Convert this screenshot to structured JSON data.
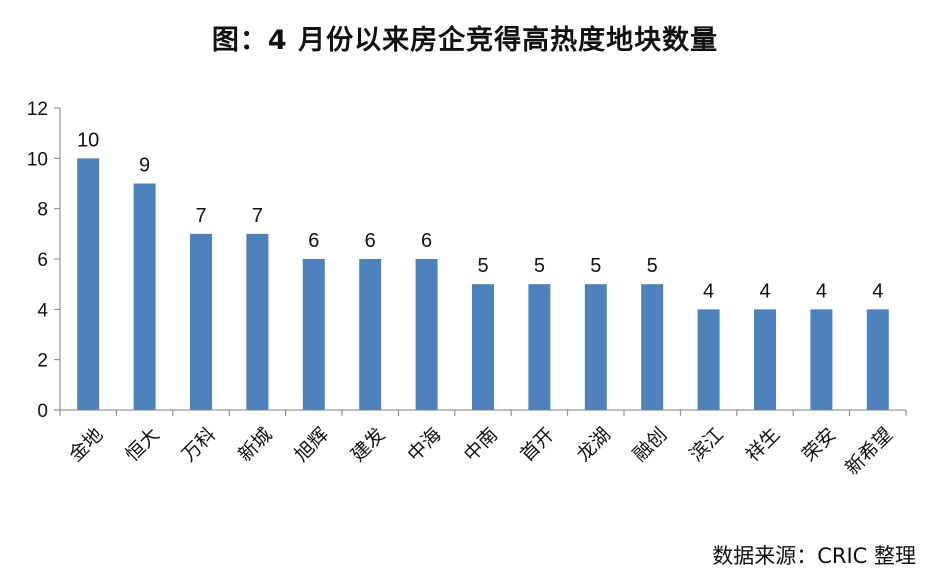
{
  "chart_data": {
    "type": "bar",
    "title": "图：4 月份以来房企竞得高热度地块数量",
    "categories": [
      "金地",
      "恒大",
      "万科",
      "新城",
      "旭辉",
      "建发",
      "中海",
      "中南",
      "首开",
      "龙湖",
      "融创",
      "滨江",
      "祥生",
      "荣安",
      "新希望"
    ],
    "values": [
      10,
      9,
      7,
      7,
      6,
      6,
      6,
      5,
      5,
      5,
      5,
      4,
      4,
      4,
      4
    ],
    "xlabel": "",
    "ylabel": "",
    "ylim": [
      0,
      12
    ],
    "yticks": [
      0,
      2,
      4,
      6,
      8,
      10,
      12
    ],
    "grid": false,
    "legend": "none",
    "bar_color": "#4f81bd",
    "axis_color": "#808080"
  },
  "source": "数据来源：CRIC 整理"
}
